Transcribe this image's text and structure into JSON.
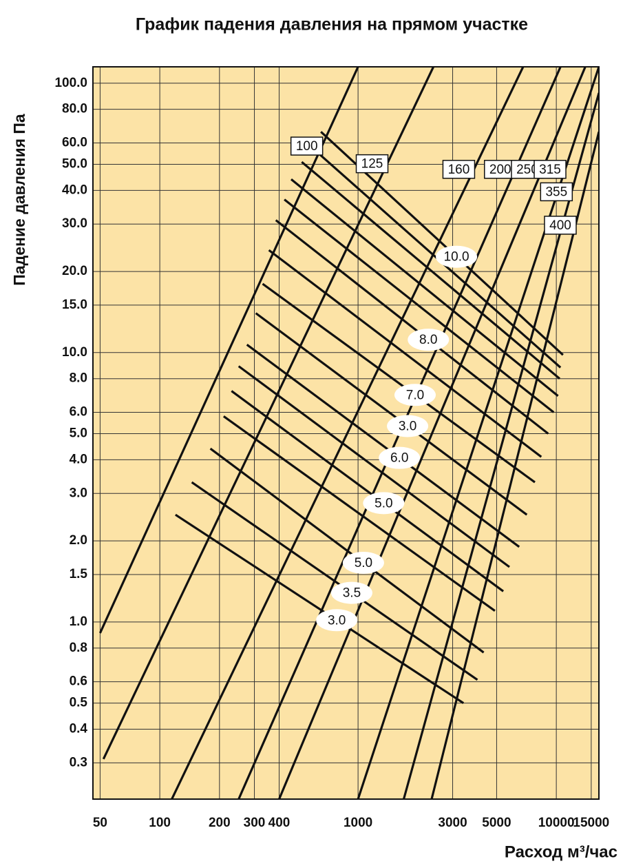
{
  "chart_data": {
    "type": "line",
    "title": "График падения давления на прямом участке",
    "y_label": "Падение давления Па",
    "x_label": "Расход м³/час",
    "x_log": true,
    "y_log": true,
    "grid": true,
    "background": "#fce3a6",
    "line_color": "#111111",
    "xlim": [
      46,
      16400
    ],
    "ylim": [
      0.22,
      115
    ],
    "xticks": [
      50,
      100,
      200,
      300,
      400,
      1000,
      3000,
      5000,
      10000,
      15000
    ],
    "yticks": [
      {
        "value": 100,
        "label": "100.0"
      },
      {
        "value": 80,
        "label": "80.0"
      },
      {
        "value": 60,
        "label": "60.0"
      },
      {
        "value": 50,
        "label": "50.0"
      },
      {
        "value": 40,
        "label": "40.0"
      },
      {
        "value": 30,
        "label": "30.0"
      },
      {
        "value": 20,
        "label": "20.0"
      },
      {
        "value": 15,
        "label": "15.0"
      },
      {
        "value": 10,
        "label": "10.0"
      },
      {
        "value": 8,
        "label": "8.0"
      },
      {
        "value": 6,
        "label": "6.0"
      },
      {
        "value": 5,
        "label": "5.0"
      },
      {
        "value": 4,
        "label": "4.0"
      },
      {
        "value": 3,
        "label": "3.0"
      },
      {
        "value": 2,
        "label": "2.0"
      },
      1.5,
      {
        "value": 1,
        "label": "1.0"
      },
      0.8,
      0.6,
      0.5,
      0.4,
      0.3
    ],
    "diameter_lines": [
      {
        "label": "100",
        "x": [
          50,
          1000
        ],
        "y": [
          0.91,
          115
        ]
      },
      {
        "label": "125",
        "x": [
          52,
          2400
        ],
        "y": [
          0.31,
          115
        ]
      },
      {
        "label": "160",
        "x": [
          115,
          6800
        ],
        "y": [
          0.22,
          115
        ]
      },
      {
        "label": "200",
        "x": [
          250,
          10500
        ],
        "y": [
          0.22,
          115
        ]
      },
      {
        "label": "250",
        "x": [
          400,
          14000
        ],
        "y": [
          0.22,
          115
        ]
      },
      {
        "label": "315",
        "x": [
          1000,
          16400
        ],
        "y": [
          0.22,
          115
        ]
      },
      {
        "label": "355",
        "x": [
          1700,
          16400
        ],
        "y": [
          0.22,
          92
        ]
      },
      {
        "label": "400",
        "x": [
          2350,
          16400
        ],
        "y": [
          0.22,
          66
        ]
      }
    ],
    "velocity_lines": [
      {
        "label": "10.0",
        "x": [
          650,
          10800
        ],
        "y": [
          66,
          9.8
        ]
      },
      {
        "x": [
          580,
          10500
        ],
        "y": [
          58,
          8.8
        ]
      },
      {
        "x": [
          520,
          10400
        ],
        "y": [
          51,
          8.0
        ]
      },
      {
        "x": [
          460,
          10200
        ],
        "y": [
          44,
          6.9
        ]
      },
      {
        "x": [
          425,
          9700
        ],
        "y": [
          37,
          6.0
        ]
      },
      {
        "label": "8.0",
        "x": [
          385,
          9100
        ],
        "y": [
          31,
          5.0
        ]
      },
      {
        "x": [
          355,
          8400
        ],
        "y": [
          24,
          4.1
        ]
      },
      {
        "label": "7.0",
        "x": [
          330,
          7800
        ],
        "y": [
          18,
          3.3
        ]
      },
      {
        "label": "3.0",
        "x": [
          305,
          7100
        ],
        "y": [
          14,
          2.5
        ]
      },
      {
        "label": "6.0",
        "x": [
          275,
          6500
        ],
        "y": [
          10.7,
          1.9
        ]
      },
      {
        "x": [
          250,
          5800
        ],
        "y": [
          8.9,
          1.6
        ]
      },
      {
        "label": "5.0",
        "x": [
          230,
          5400
        ],
        "y": [
          7.2,
          1.3
        ]
      },
      {
        "x": [
          210,
          4900
        ],
        "y": [
          5.8,
          1.1
        ]
      },
      {
        "label": "5.0",
        "x": [
          180,
          4300
        ],
        "y": [
          4.4,
          0.77
        ]
      },
      {
        "label": "3.5",
        "x": [
          145,
          4000
        ],
        "y": [
          3.3,
          0.61
        ]
      },
      {
        "label": "3.0",
        "x": [
          120,
          3400
        ],
        "y": [
          2.5,
          0.5
        ]
      }
    ]
  }
}
